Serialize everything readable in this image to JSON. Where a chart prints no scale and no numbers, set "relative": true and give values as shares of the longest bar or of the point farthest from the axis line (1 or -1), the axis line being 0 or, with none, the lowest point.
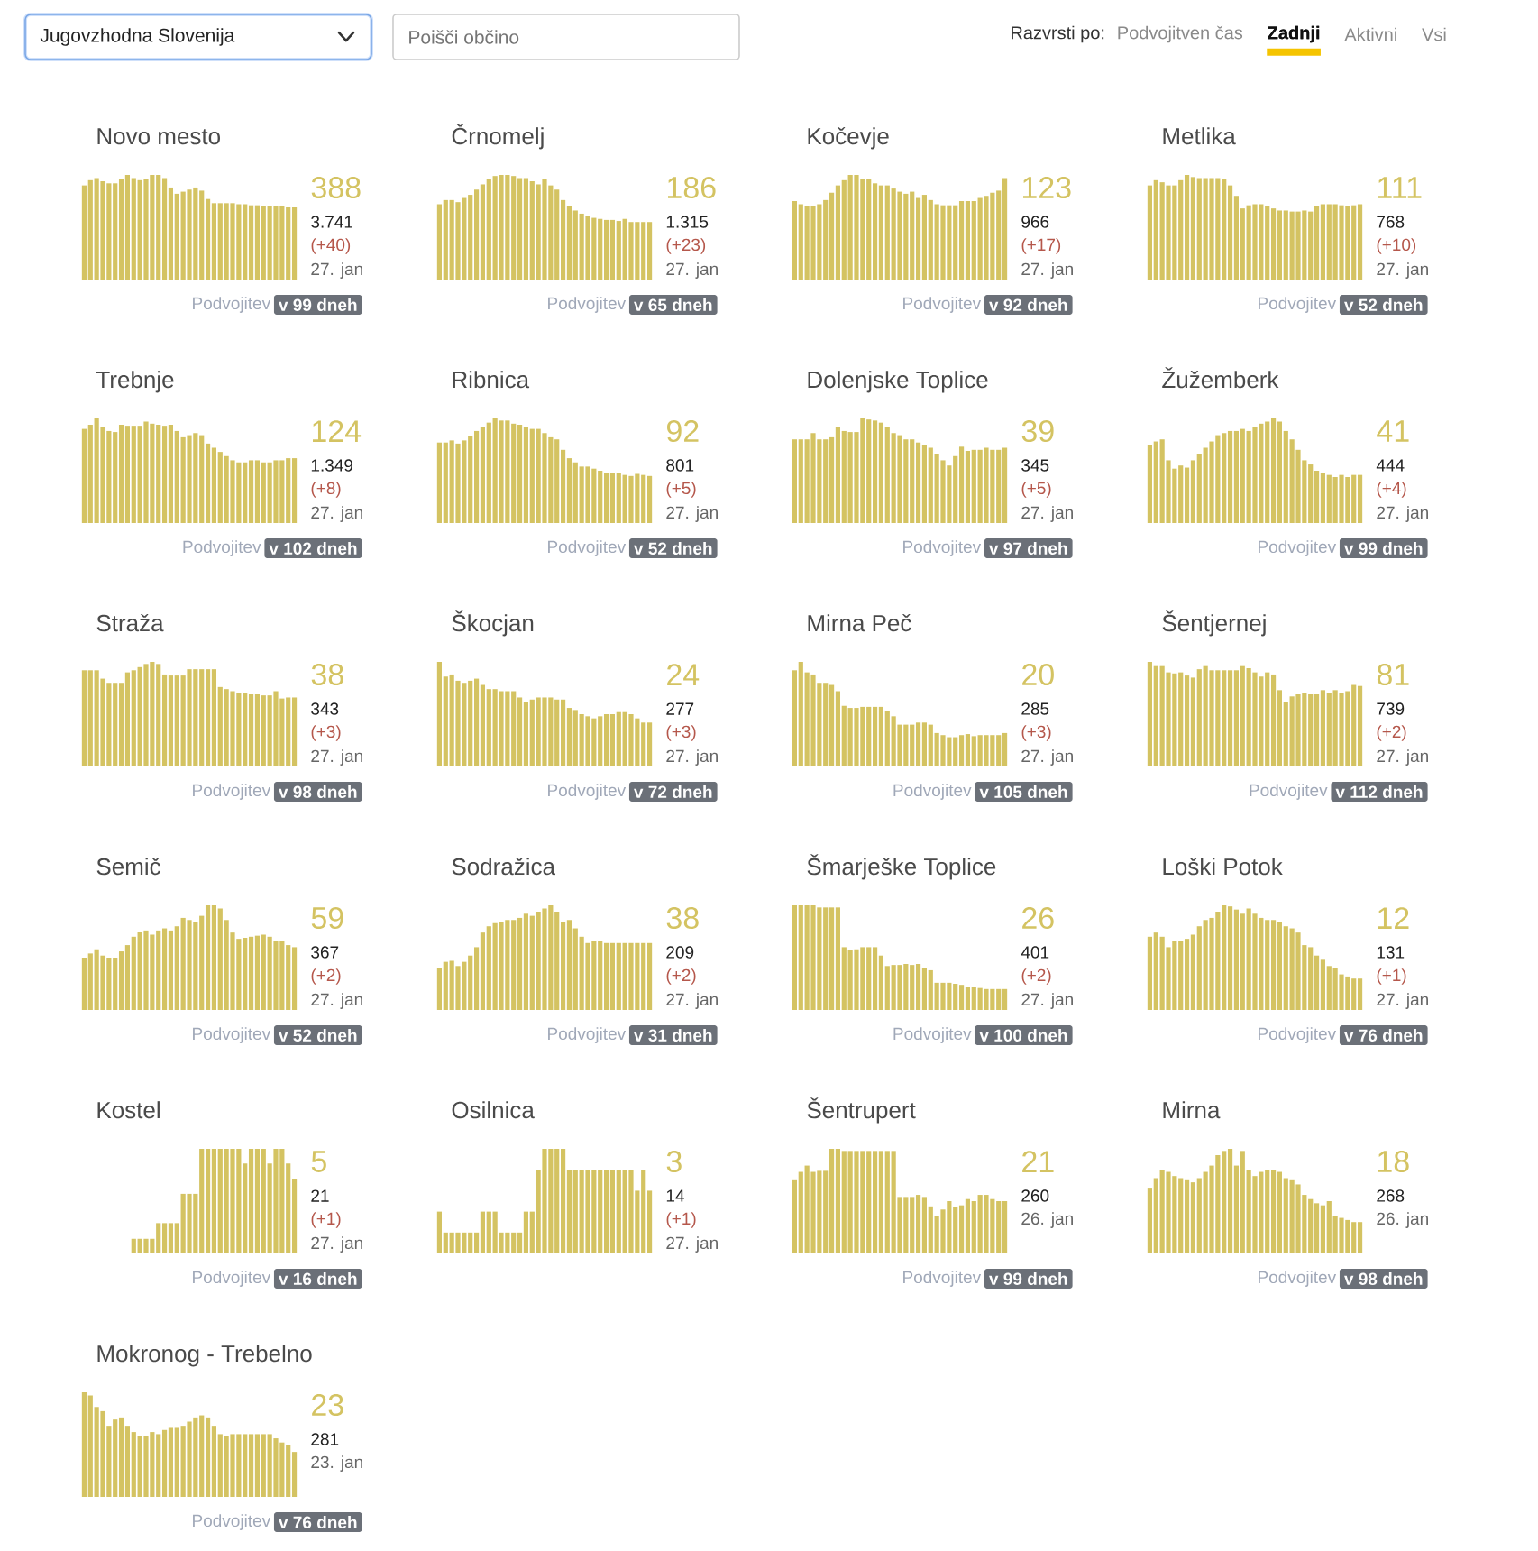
{
  "chart_data": [
    {
      "type": "other",
      "annotations": [
        "Jugovzhodna Slovenija",
        "Poišči občino",
        "Razvrsti po:",
        "Podvojitven čas",
        "Zadnji",
        "Aktivni",
        "Vsi"
      ]
    },
    {
      "type": "bar",
      "relative": true,
      "title": "Novo mesto",
      "color": "#d4c362",
      "annotations": [
        "388",
        "3.741",
        "(+40)",
        "27. jan",
        "Podvojitev",
        "v 99 dneh"
      ],
      "categories": [
        null,
        null,
        null,
        null,
        null,
        null,
        null,
        null,
        null,
        null,
        null,
        null,
        null,
        null,
        null,
        null,
        null,
        null,
        null,
        null,
        null,
        null,
        null,
        null,
        null,
        null,
        null,
        null,
        null,
        null,
        null,
        null,
        null,
        null,
        null
      ],
      "values": [
        0.9,
        0.95,
        0.97,
        0.94,
        0.92,
        0.92,
        0.96,
        1,
        0.97,
        0.95,
        0.96,
        1,
        1,
        0.97,
        0.88,
        0.82,
        0.84,
        0.86,
        0.88,
        0.85,
        0.77,
        0.73,
        0.73,
        0.73,
        0.73,
        0.72,
        0.72,
        0.71,
        0.71,
        0.7,
        0.7,
        0.7,
        0.7,
        0.69,
        0.69
      ]
    },
    {
      "type": "bar",
      "relative": true,
      "title": "Črnomelj",
      "color": "#d4c362",
      "annotations": [
        "186",
        "1.315",
        "(+23)",
        "27. jan",
        "Podvojitev",
        "v 65 dneh"
      ],
      "categories": [
        null,
        null,
        null,
        null,
        null,
        null,
        null,
        null,
        null,
        null,
        null,
        null,
        null,
        null,
        null,
        null,
        null,
        null,
        null,
        null,
        null,
        null,
        null,
        null,
        null,
        null,
        null,
        null,
        null,
        null,
        null,
        null,
        null,
        null,
        null
      ],
      "values": [
        0.72,
        0.76,
        0.76,
        0.74,
        0.78,
        0.81,
        0.86,
        0.91,
        0.96,
        0.99,
        1,
        1,
        0.99,
        0.97,
        0.97,
        0.94,
        0.91,
        0.96,
        0.9,
        0.86,
        0.76,
        0.7,
        0.66,
        0.63,
        0.61,
        0.59,
        0.58,
        0.57,
        0.57,
        0.56,
        0.58,
        0.55,
        0.55,
        0.55,
        0.55
      ]
    },
    {
      "type": "bar",
      "relative": true,
      "title": "Kočevje",
      "color": "#d4c362",
      "annotations": [
        "123",
        "966",
        "(+17)",
        "27. jan",
        "Podvojitev",
        "v 92 dneh"
      ],
      "categories": [
        null,
        null,
        null,
        null,
        null,
        null,
        null,
        null,
        null,
        null,
        null,
        null,
        null,
        null,
        null,
        null,
        null,
        null,
        null,
        null,
        null,
        null,
        null,
        null,
        null,
        null,
        null,
        null,
        null,
        null,
        null,
        null,
        null,
        null,
        null
      ],
      "values": [
        0.75,
        0.72,
        0.7,
        0.7,
        0.72,
        0.76,
        0.83,
        0.9,
        0.95,
        1,
        1,
        0.96,
        0.96,
        0.92,
        0.9,
        0.9,
        0.87,
        0.84,
        0.82,
        0.84,
        0.78,
        0.81,
        0.76,
        0.72,
        0.71,
        0.71,
        0.71,
        0.75,
        0.75,
        0.75,
        0.78,
        0.8,
        0.83,
        0.85,
        0.97
      ]
    },
    {
      "type": "bar",
      "relative": true,
      "title": "Metlika",
      "color": "#d4c362",
      "annotations": [
        "111",
        "768",
        "(+10)",
        "27. jan",
        "Podvojitev",
        "v 52 dneh"
      ],
      "categories": [
        null,
        null,
        null,
        null,
        null,
        null,
        null,
        null,
        null,
        null,
        null,
        null,
        null,
        null,
        null,
        null,
        null,
        null,
        null,
        null,
        null,
        null,
        null,
        null,
        null,
        null,
        null,
        null,
        null,
        null,
        null,
        null,
        null,
        null,
        null
      ],
      "values": [
        0.9,
        0.95,
        0.93,
        0.9,
        0.9,
        0.95,
        1,
        0.98,
        0.97,
        0.97,
        0.97,
        0.97,
        0.96,
        0.9,
        0.8,
        0.68,
        0.71,
        0.72,
        0.72,
        0.7,
        0.68,
        0.66,
        0.66,
        0.65,
        0.65,
        0.66,
        0.65,
        0.7,
        0.72,
        0.72,
        0.72,
        0.71,
        0.7,
        0.71,
        0.72
      ]
    },
    {
      "type": "bar",
      "relative": true,
      "title": "Trebnje",
      "color": "#d4c362",
      "annotations": [
        "124",
        "1.349",
        "(+8)",
        "27. jan",
        "Podvojitev",
        "v 102 dneh"
      ],
      "categories": [
        null,
        null,
        null,
        null,
        null,
        null,
        null,
        null,
        null,
        null,
        null,
        null,
        null,
        null,
        null,
        null,
        null,
        null,
        null,
        null,
        null,
        null,
        null,
        null,
        null,
        null,
        null,
        null,
        null,
        null,
        null,
        null,
        null,
        null,
        null
      ],
      "values": [
        0.9,
        0.94,
        1,
        0.92,
        0.88,
        0.87,
        0.94,
        0.93,
        0.93,
        0.93,
        0.97,
        0.95,
        0.94,
        0.93,
        0.94,
        0.88,
        0.82,
        0.84,
        0.86,
        0.84,
        0.76,
        0.72,
        0.68,
        0.64,
        0.6,
        0.58,
        0.58,
        0.6,
        0.6,
        0.58,
        0.58,
        0.6,
        0.6,
        0.62,
        0.62
      ]
    },
    {
      "type": "bar",
      "relative": true,
      "title": "Ribnica",
      "color": "#d4c362",
      "annotations": [
        "92",
        "801",
        "(+5)",
        "27. jan",
        "Podvojitev",
        "v 52 dneh"
      ],
      "categories": [
        null,
        null,
        null,
        null,
        null,
        null,
        null,
        null,
        null,
        null,
        null,
        null,
        null,
        null,
        null,
        null,
        null,
        null,
        null,
        null,
        null,
        null,
        null,
        null,
        null,
        null,
        null,
        null,
        null,
        null,
        null,
        null,
        null,
        null,
        null
      ],
      "values": [
        0.77,
        0.77,
        0.79,
        0.76,
        0.79,
        0.83,
        0.88,
        0.92,
        0.96,
        1,
        0.98,
        0.98,
        0.95,
        0.94,
        0.92,
        0.9,
        0.9,
        0.86,
        0.82,
        0.8,
        0.7,
        0.62,
        0.58,
        0.54,
        0.54,
        0.52,
        0.5,
        0.48,
        0.48,
        0.48,
        0.46,
        0.45,
        0.47,
        0.46,
        0.45
      ]
    },
    {
      "type": "bar",
      "relative": true,
      "title": "Dolenjske Toplice",
      "color": "#d4c362",
      "annotations": [
        "39",
        "345",
        "(+5)",
        "27. jan",
        "Podvojitev",
        "v 97 dneh"
      ],
      "categories": [
        null,
        null,
        null,
        null,
        null,
        null,
        null,
        null,
        null,
        null,
        null,
        null,
        null,
        null,
        null,
        null,
        null,
        null,
        null,
        null,
        null,
        null,
        null,
        null,
        null,
        null,
        null,
        null,
        null,
        null,
        null,
        null,
        null,
        null,
        null
      ],
      "values": [
        0.8,
        0.8,
        0.8,
        0.86,
        0.8,
        0.8,
        0.82,
        0.92,
        0.88,
        0.87,
        0.87,
        1,
        0.99,
        0.98,
        0.96,
        0.92,
        0.86,
        0.84,
        0.8,
        0.8,
        0.77,
        0.75,
        0.72,
        0.66,
        0.6,
        0.55,
        0.64,
        0.73,
        0.69,
        0.7,
        0.7,
        0.72,
        0.7,
        0.7,
        0.72
      ]
    },
    {
      "type": "bar",
      "relative": true,
      "title": "Žužemberk",
      "color": "#d4c362",
      "annotations": [
        "41",
        "444",
        "(+4)",
        "27. jan",
        "Podvojitev",
        "v 99 dneh"
      ],
      "categories": [
        null,
        null,
        null,
        null,
        null,
        null,
        null,
        null,
        null,
        null,
        null,
        null,
        null,
        null,
        null,
        null,
        null,
        null,
        null,
        null,
        null,
        null,
        null,
        null,
        null,
        null,
        null,
        null,
        null,
        null,
        null,
        null,
        null,
        null,
        null
      ],
      "values": [
        0.75,
        0.78,
        0.8,
        0.6,
        0.52,
        0.55,
        0.53,
        0.6,
        0.66,
        0.72,
        0.78,
        0.84,
        0.86,
        0.88,
        0.88,
        0.9,
        0.88,
        0.92,
        0.95,
        0.97,
        1,
        0.97,
        0.88,
        0.8,
        0.7,
        0.6,
        0.56,
        0.5,
        0.48,
        0.46,
        0.44,
        0.46,
        0.44,
        0.46,
        0.46
      ]
    },
    {
      "type": "bar",
      "relative": true,
      "title": "Straža",
      "color": "#d4c362",
      "annotations": [
        "38",
        "343",
        "(+3)",
        "27. jan",
        "Podvojitev",
        "v 98 dneh"
      ],
      "categories": [
        null,
        null,
        null,
        null,
        null,
        null,
        null,
        null,
        null,
        null,
        null,
        null,
        null,
        null,
        null,
        null,
        null,
        null,
        null,
        null,
        null,
        null,
        null,
        null,
        null,
        null,
        null,
        null,
        null,
        null,
        null,
        null,
        null,
        null,
        null
      ],
      "values": [
        0.92,
        0.92,
        0.92,
        0.84,
        0.8,
        0.8,
        0.8,
        0.9,
        0.92,
        0.95,
        0.98,
        1,
        0.98,
        0.88,
        0.87,
        0.87,
        0.87,
        0.93,
        0.93,
        0.93,
        0.93,
        0.93,
        0.76,
        0.74,
        0.72,
        0.7,
        0.7,
        0.69,
        0.69,
        0.68,
        0.68,
        0.72,
        0.65,
        0.66,
        0.66
      ]
    },
    {
      "type": "bar",
      "relative": true,
      "title": "Škocjan",
      "color": "#d4c362",
      "annotations": [
        "24",
        "277",
        "(+3)",
        "27. jan",
        "Podvojitev",
        "v 72 dneh"
      ],
      "categories": [
        null,
        null,
        null,
        null,
        null,
        null,
        null,
        null,
        null,
        null,
        null,
        null,
        null,
        null,
        null,
        null,
        null,
        null,
        null,
        null,
        null,
        null,
        null,
        null,
        null,
        null,
        null,
        null,
        null,
        null,
        null,
        null,
        null,
        null,
        null
      ],
      "values": [
        1,
        0.86,
        0.88,
        0.82,
        0.8,
        0.82,
        0.84,
        0.78,
        0.74,
        0.74,
        0.72,
        0.72,
        0.72,
        0.66,
        0.62,
        0.64,
        0.66,
        0.66,
        0.66,
        0.64,
        0.64,
        0.56,
        0.54,
        0.5,
        0.48,
        0.46,
        0.48,
        0.5,
        0.5,
        0.52,
        0.52,
        0.5,
        0.46,
        0.42,
        0.42
      ]
    },
    {
      "type": "bar",
      "relative": true,
      "title": "Mirna Peč",
      "color": "#d4c362",
      "annotations": [
        "20",
        "285",
        "(+3)",
        "27. jan",
        "Podvojitev",
        "v 105 dneh"
      ],
      "categories": [
        null,
        null,
        null,
        null,
        null,
        null,
        null,
        null,
        null,
        null,
        null,
        null,
        null,
        null,
        null,
        null,
        null,
        null,
        null,
        null,
        null,
        null,
        null,
        null,
        null,
        null,
        null,
        null,
        null,
        null,
        null,
        null,
        null,
        null,
        null
      ],
      "values": [
        0.92,
        1,
        0.9,
        0.88,
        0.8,
        0.8,
        0.78,
        0.72,
        0.58,
        0.56,
        0.56,
        0.57,
        0.57,
        0.57,
        0.57,
        0.53,
        0.48,
        0.4,
        0.4,
        0.4,
        0.42,
        0.42,
        0.4,
        0.32,
        0.3,
        0.28,
        0.28,
        0.3,
        0.31,
        0.29,
        0.3,
        0.3,
        0.3,
        0.3,
        0.32
      ]
    },
    {
      "type": "bar",
      "relative": true,
      "title": "Šentjernej",
      "color": "#d4c362",
      "annotations": [
        "81",
        "739",
        "(+2)",
        "27. jan",
        "Podvojitev",
        "v 112 dneh"
      ],
      "categories": [
        null,
        null,
        null,
        null,
        null,
        null,
        null,
        null,
        null,
        null,
        null,
        null,
        null,
        null,
        null,
        null,
        null,
        null,
        null,
        null,
        null,
        null,
        null,
        null,
        null,
        null,
        null,
        null,
        null,
        null,
        null,
        null,
        null,
        null,
        null
      ],
      "values": [
        1,
        0.96,
        0.96,
        0.9,
        0.89,
        0.9,
        0.87,
        0.85,
        0.93,
        0.96,
        0.92,
        0.92,
        0.92,
        0.92,
        0.92,
        0.96,
        0.94,
        0.9,
        0.86,
        0.9,
        0.88,
        0.73,
        0.62,
        0.67,
        0.69,
        0.7,
        0.69,
        0.69,
        0.73,
        0.7,
        0.73,
        0.7,
        0.72,
        0.78,
        0.77
      ]
    },
    {
      "type": "bar",
      "relative": true,
      "title": "Semič",
      "color": "#d4c362",
      "annotations": [
        "59",
        "367",
        "(+2)",
        "27. jan",
        "Podvojitev",
        "v 52 dneh"
      ],
      "categories": [
        null,
        null,
        null,
        null,
        null,
        null,
        null,
        null,
        null,
        null,
        null,
        null,
        null,
        null,
        null,
        null,
        null,
        null,
        null,
        null,
        null,
        null,
        null,
        null,
        null,
        null,
        null,
        null,
        null,
        null,
        null,
        null,
        null,
        null,
        null
      ],
      "values": [
        0.5,
        0.54,
        0.58,
        0.52,
        0.5,
        0.5,
        0.56,
        0.62,
        0.7,
        0.75,
        0.76,
        0.72,
        0.76,
        0.78,
        0.76,
        0.8,
        0.88,
        0.86,
        0.84,
        0.9,
        1,
        1,
        0.97,
        0.86,
        0.74,
        0.68,
        0.69,
        0.7,
        0.71,
        0.72,
        0.7,
        0.66,
        0.66,
        0.62,
        0.6
      ]
    },
    {
      "type": "bar",
      "relative": true,
      "title": "Sodražica",
      "color": "#d4c362",
      "annotations": [
        "38",
        "209",
        "(+2)",
        "27. jan",
        "Podvojitev",
        "v 31 dneh"
      ],
      "categories": [
        null,
        null,
        null,
        null,
        null,
        null,
        null,
        null,
        null,
        null,
        null,
        null,
        null,
        null,
        null,
        null,
        null,
        null,
        null,
        null,
        null,
        null,
        null,
        null,
        null,
        null,
        null,
        null,
        null,
        null,
        null,
        null,
        null,
        null,
        null
      ],
      "values": [
        0.4,
        0.46,
        0.47,
        0.42,
        0.46,
        0.52,
        0.6,
        0.74,
        0.8,
        0.83,
        0.84,
        0.86,
        0.86,
        0.88,
        0.92,
        0.9,
        0.94,
        0.97,
        1,
        0.94,
        0.84,
        0.86,
        0.78,
        0.7,
        0.64,
        0.66,
        0.66,
        0.64,
        0.64,
        0.64,
        0.64,
        0.64,
        0.64,
        0.64,
        0.64
      ]
    },
    {
      "type": "bar",
      "relative": true,
      "title": "Šmarješke Toplice",
      "color": "#d4c362",
      "annotations": [
        "26",
        "401",
        "(+2)",
        "27. jan",
        "Podvojitev",
        "v 100 dneh"
      ],
      "categories": [
        null,
        null,
        null,
        null,
        null,
        null,
        null,
        null,
        null,
        null,
        null,
        null,
        null,
        null,
        null,
        null,
        null,
        null,
        null,
        null,
        null,
        null,
        null,
        null,
        null,
        null,
        null,
        null,
        null,
        null,
        null,
        null,
        null,
        null,
        null
      ],
      "values": [
        1,
        1,
        1,
        1,
        0.98,
        0.98,
        0.98,
        0.98,
        0.6,
        0.57,
        0.58,
        0.6,
        0.6,
        0.6,
        0.52,
        0.42,
        0.43,
        0.43,
        0.44,
        0.43,
        0.44,
        0.4,
        0.38,
        0.26,
        0.26,
        0.26,
        0.25,
        0.24,
        0.22,
        0.22,
        0.21,
        0.2,
        0.2,
        0.2,
        0.2
      ]
    },
    {
      "type": "bar",
      "relative": true,
      "title": "Loški Potok",
      "color": "#d4c362",
      "annotations": [
        "12",
        "131",
        "(+1)",
        "27. jan",
        "Podvojitev",
        "v 76 dneh"
      ],
      "categories": [
        null,
        null,
        null,
        null,
        null,
        null,
        null,
        null,
        null,
        null,
        null,
        null,
        null,
        null,
        null,
        null,
        null,
        null,
        null,
        null,
        null,
        null,
        null,
        null,
        null,
        null,
        null,
        null,
        null,
        null,
        null,
        null,
        null,
        null,
        null
      ],
      "values": [
        0.7,
        0.74,
        0.7,
        0.6,
        0.66,
        0.66,
        0.68,
        0.72,
        0.8,
        0.86,
        0.88,
        0.94,
        1,
        0.99,
        0.96,
        0.92,
        0.97,
        0.92,
        0.88,
        0.86,
        0.86,
        0.84,
        0.8,
        0.78,
        0.74,
        0.62,
        0.6,
        0.52,
        0.48,
        0.42,
        0.4,
        0.34,
        0.32,
        0.3,
        0.3
      ]
    },
    {
      "type": "bar",
      "relative": true,
      "title": "Kostel",
      "color": "#d4c362",
      "annotations": [
        "5",
        "21",
        "(+1)",
        "27. jan",
        "Podvojitev",
        "v 16 dneh"
      ],
      "categories": [
        null,
        null,
        null,
        null,
        null,
        null,
        null,
        null,
        null,
        null,
        null,
        null,
        null,
        null,
        null,
        null,
        null,
        null,
        null,
        null,
        null,
        null,
        null,
        null,
        null,
        null,
        null,
        null,
        null,
        null,
        null,
        null,
        null,
        null,
        null
      ],
      "values": [
        0,
        0,
        0,
        0,
        0,
        0,
        0,
        0,
        0.14,
        0.14,
        0.14,
        0.14,
        0.29,
        0.29,
        0.29,
        0.29,
        0.57,
        0.57,
        0.57,
        1,
        1,
        1,
        1,
        1,
        1,
        1,
        0.86,
        1,
        1,
        1,
        0.86,
        1,
        1,
        0.86,
        0.71
      ]
    },
    {
      "type": "bar",
      "relative": true,
      "title": "Osilnica",
      "color": "#d4c362",
      "annotations": [
        "3",
        "14",
        "(+1)",
        "27. jan"
      ],
      "categories": [
        null,
        null,
        null,
        null,
        null,
        null,
        null,
        null,
        null,
        null,
        null,
        null,
        null,
        null,
        null,
        null,
        null,
        null,
        null,
        null,
        null,
        null,
        null,
        null,
        null,
        null,
        null,
        null,
        null,
        null,
        null,
        null,
        null,
        null,
        null
      ],
      "values": [
        0.4,
        0.2,
        0.2,
        0.2,
        0.2,
        0.2,
        0.2,
        0.4,
        0.4,
        0.4,
        0.2,
        0.2,
        0.2,
        0.2,
        0.4,
        0.4,
        0.8,
        1,
        1,
        1,
        1,
        0.8,
        0.8,
        0.8,
        0.8,
        0.8,
        0.8,
        0.8,
        0.8,
        0.8,
        0.8,
        0.8,
        0.6,
        0.8,
        0.6
      ]
    },
    {
      "type": "bar",
      "relative": true,
      "title": "Šentrupert",
      "color": "#d4c362",
      "annotations": [
        "21",
        "260",
        "26. jan",
        "Podvojitev",
        "v 99 dneh"
      ],
      "categories": [
        null,
        null,
        null,
        null,
        null,
        null,
        null,
        null,
        null,
        null,
        null,
        null,
        null,
        null,
        null,
        null,
        null,
        null,
        null,
        null,
        null,
        null,
        null,
        null,
        null,
        null,
        null,
        null,
        null,
        null,
        null,
        null,
        null,
        null,
        null
      ],
      "values": [
        0.7,
        0.78,
        0.84,
        0.78,
        0.79,
        0.79,
        1,
        1,
        0.98,
        0.98,
        0.98,
        0.98,
        0.98,
        0.98,
        0.98,
        0.98,
        0.98,
        0.54,
        0.54,
        0.54,
        0.56,
        0.54,
        0.45,
        0.36,
        0.42,
        0.5,
        0.44,
        0.46,
        0.52,
        0.5,
        0.56,
        0.56,
        0.52,
        0.5,
        0.5
      ]
    },
    {
      "type": "bar",
      "relative": true,
      "title": "Mirna",
      "color": "#d4c362",
      "annotations": [
        "18",
        "268",
        "26. jan",
        "Podvojitev",
        "v 98 dneh"
      ],
      "categories": [
        null,
        null,
        null,
        null,
        null,
        null,
        null,
        null,
        null,
        null,
        null,
        null,
        null,
        null,
        null,
        null,
        null,
        null,
        null,
        null,
        null,
        null,
        null,
        null,
        null,
        null,
        null,
        null,
        null,
        null,
        null,
        null,
        null,
        null,
        null
      ],
      "values": [
        0.62,
        0.72,
        0.8,
        0.78,
        0.74,
        0.72,
        0.7,
        0.68,
        0.72,
        0.78,
        0.84,
        0.94,
        0.98,
        1,
        0.84,
        0.98,
        0.8,
        0.74,
        0.78,
        0.8,
        0.8,
        0.78,
        0.72,
        0.7,
        0.66,
        0.56,
        0.52,
        0.48,
        0.46,
        0.5,
        0.36,
        0.34,
        0.32,
        0.3,
        0.3
      ]
    },
    {
      "type": "bar",
      "relative": true,
      "title": "Mokronog - Trebelno",
      "color": "#d4c362",
      "annotations": [
        "23",
        "281",
        "23. jan",
        "Podvojitev",
        "v 76 dneh"
      ],
      "categories": [
        null,
        null,
        null,
        null,
        null,
        null,
        null,
        null,
        null,
        null,
        null,
        null,
        null,
        null,
        null,
        null,
        null,
        null,
        null,
        null,
        null,
        null,
        null,
        null,
        null,
        null,
        null,
        null,
        null,
        null,
        null,
        null,
        null,
        null,
        null
      ],
      "values": [
        1,
        0.97,
        0.86,
        0.82,
        0.68,
        0.74,
        0.76,
        0.68,
        0.62,
        0.58,
        0.58,
        0.62,
        0.6,
        0.64,
        0.66,
        0.66,
        0.68,
        0.72,
        0.76,
        0.78,
        0.76,
        0.68,
        0.6,
        0.58,
        0.6,
        0.6,
        0.6,
        0.6,
        0.6,
        0.6,
        0.6,
        0.56,
        0.52,
        0.5,
        0.43
      ]
    }
  ]
}
